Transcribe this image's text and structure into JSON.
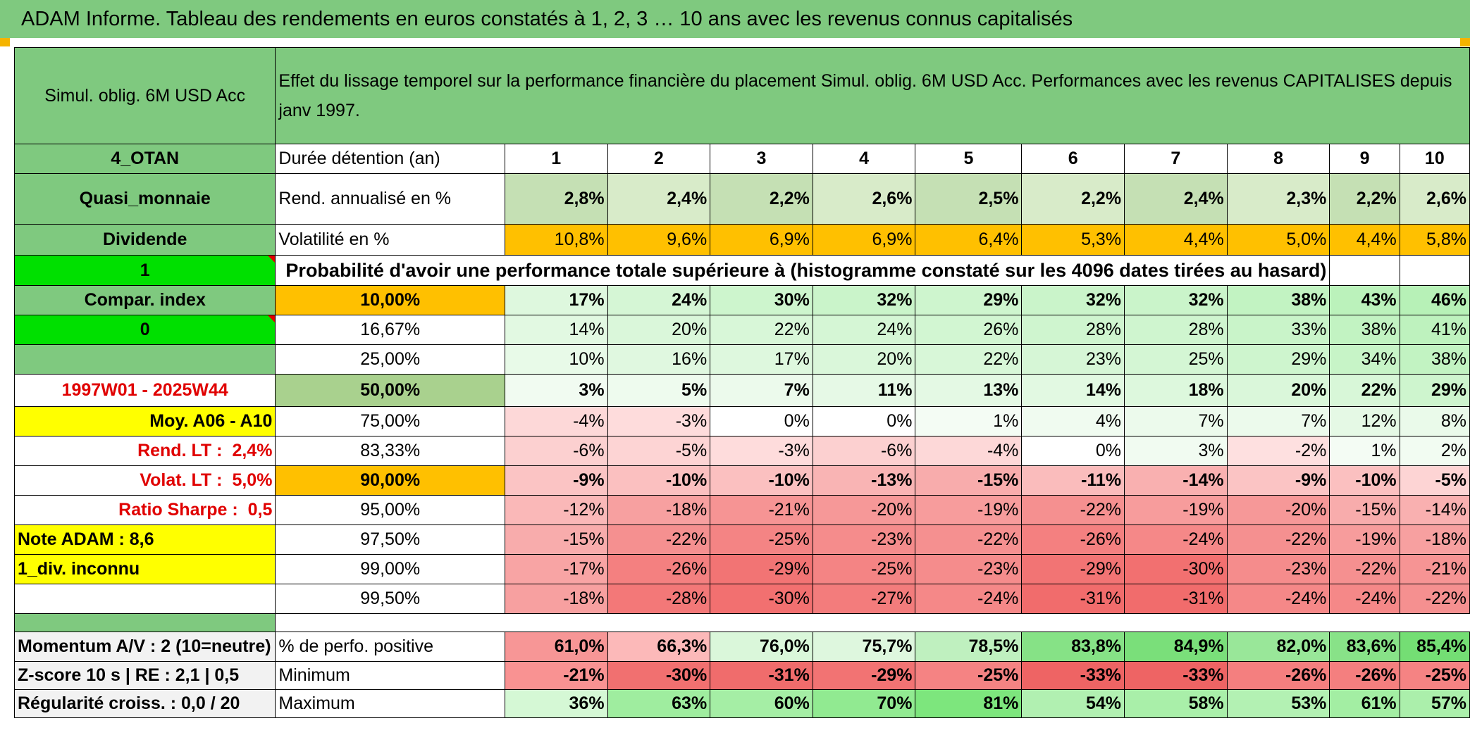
{
  "title": "ADAM Informe. Tableau des rendements en euros constatés à 1, 2, 3 … 10 ans avec les revenus connus capitalisés",
  "fund_name": "Simul. oblig. 6M USD Acc",
  "description": "Effet du lissage temporel sur la performance financière du placement Simul. oblig. 6M USD Acc. Performances avec les revenus CAPITALISES depuis janv 1997.",
  "side": {
    "category": "4_OTAN",
    "type": "Quasi_monnaie",
    "dividend": "Dividende",
    "flag1": "1",
    "compar_index": "Compar. index",
    "flag0": "0",
    "period": "1997W01 - 2025W44",
    "moy": "Moy. A06 - A10",
    "rend_lt_label": "Rend. LT :",
    "rend_lt_value": "2,4%",
    "volat_lt_label": "Volat. LT :",
    "volat_lt_value": "5,0%",
    "sharpe_label": "Ratio Sharpe :",
    "sharpe_value": "0,5",
    "note_adam": "Note ADAM : 8,6",
    "div_inconnu": "1_div. inconnu"
  },
  "header": {
    "duree_label": "Durée détention (an)",
    "years": [
      "1",
      "2",
      "3",
      "4",
      "5",
      "6",
      "7",
      "8",
      "9",
      "10"
    ]
  },
  "rend": {
    "label": "Rend. annualisé en %",
    "values": [
      "2,8%",
      "2,4%",
      "2,2%",
      "2,6%",
      "2,5%",
      "2,2%",
      "2,4%",
      "2,3%",
      "2,2%",
      "2,6%"
    ]
  },
  "volat": {
    "label": "Volatilité en %",
    "values": [
      "10,8%",
      "9,6%",
      "6,9%",
      "6,9%",
      "6,4%",
      "5,3%",
      "4,4%",
      "5,0%",
      "4,4%",
      "5,8%"
    ]
  },
  "prob_label": "Probabilité d'avoir une performance totale supérieure à (histogramme constaté sur les 4096 dates tirées au hasard)",
  "prob_rows": [
    {
      "pct": "10,00%",
      "values": [
        "17%",
        "24%",
        "30%",
        "32%",
        "29%",
        "32%",
        "32%",
        "38%",
        "43%",
        "46%"
      ]
    },
    {
      "pct": "16,67%",
      "values": [
        "14%",
        "20%",
        "22%",
        "24%",
        "26%",
        "28%",
        "28%",
        "33%",
        "38%",
        "41%"
      ]
    },
    {
      "pct": "25,00%",
      "values": [
        "10%",
        "16%",
        "17%",
        "20%",
        "22%",
        "23%",
        "25%",
        "29%",
        "34%",
        "38%"
      ]
    },
    {
      "pct": "50,00%",
      "values": [
        "3%",
        "5%",
        "7%",
        "11%",
        "13%",
        "14%",
        "18%",
        "20%",
        "22%",
        "29%"
      ]
    },
    {
      "pct": "75,00%",
      "values": [
        "-4%",
        "-3%",
        "0%",
        "0%",
        "1%",
        "4%",
        "7%",
        "7%",
        "12%",
        "8%"
      ]
    },
    {
      "pct": "83,33%",
      "values": [
        "-6%",
        "-5%",
        "-3%",
        "-6%",
        "-4%",
        "0%",
        "3%",
        "-2%",
        "1%",
        "2%"
      ]
    },
    {
      "pct": "90,00%",
      "values": [
        "-9%",
        "-10%",
        "-10%",
        "-13%",
        "-15%",
        "-11%",
        "-14%",
        "-9%",
        "-10%",
        "-5%"
      ]
    },
    {
      "pct": "95,00%",
      "values": [
        "-12%",
        "-18%",
        "-21%",
        "-20%",
        "-19%",
        "-22%",
        "-19%",
        "-20%",
        "-15%",
        "-14%"
      ]
    },
    {
      "pct": "97,50%",
      "values": [
        "-15%",
        "-22%",
        "-25%",
        "-23%",
        "-22%",
        "-26%",
        "-24%",
        "-22%",
        "-19%",
        "-18%"
      ]
    },
    {
      "pct": "99,00%",
      "values": [
        "-17%",
        "-26%",
        "-29%",
        "-25%",
        "-23%",
        "-29%",
        "-30%",
        "-23%",
        "-22%",
        "-21%"
      ]
    },
    {
      "pct": "99,50%",
      "values": [
        "-18%",
        "-28%",
        "-30%",
        "-27%",
        "-24%",
        "-31%",
        "-31%",
        "-24%",
        "-24%",
        "-22%"
      ]
    }
  ],
  "bottom": {
    "momentum": "Momentum A/V : 2 (10=neutre)",
    "zscore": "Z-score 10 s | RE : 2,1 | 0,5",
    "regularite": "Régularité croiss. : 0,0 / 20",
    "pos_label": "% de perfo. positive",
    "pos_values": [
      "61,0%",
      "66,3%",
      "76,0%",
      "75,7%",
      "78,5%",
      "83,8%",
      "84,9%",
      "82,0%",
      "83,6%",
      "85,4%"
    ],
    "min_label": "Minimum",
    "min_values": [
      "-21%",
      "-30%",
      "-31%",
      "-29%",
      "-25%",
      "-33%",
      "-33%",
      "-26%",
      "-26%",
      "-25%"
    ],
    "max_label": "Maximum",
    "max_values": [
      "36%",
      "63%",
      "60%",
      "70%",
      "81%",
      "54%",
      "58%",
      "53%",
      "61%",
      "57%"
    ]
  },
  "colors": {
    "header_green": "#7fc97f",
    "bright_green": "#00e000",
    "yellow": "#ffff00",
    "orange": "#ffc000",
    "rend_green": "#c5e0b4",
    "red_text": "#e00000"
  }
}
